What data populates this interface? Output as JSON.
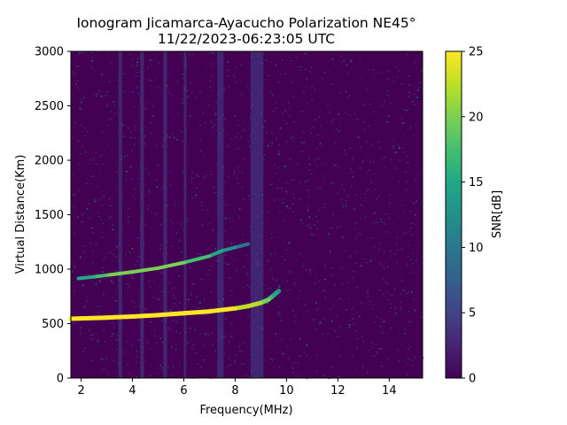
{
  "chart_data": {
    "type": "heatmap",
    "title": "Ionogram Jicamarca-Ayacucho Polarization NE45°",
    "subtitle": "11/22/2023-06:23:05 UTC",
    "xlabel": "Frequency(MHz)",
    "ylabel": "Virtual Distance(Km)",
    "xlim": [
      1.6,
      15.3
    ],
    "ylim": [
      0,
      3000
    ],
    "x_ticks": [
      2,
      4,
      6,
      8,
      10,
      12,
      14
    ],
    "y_ticks": [
      0,
      500,
      1000,
      1500,
      2000,
      2500,
      3000
    ],
    "colorbar": {
      "label": "SNR[dB]",
      "range": [
        0,
        25
      ],
      "ticks": [
        0,
        5,
        10,
        15,
        20,
        25
      ],
      "colormap": "viridis"
    },
    "traces": [
      {
        "x": [
          1.6,
          2.0,
          3.0,
          4.0,
          5.0,
          6.0,
          7.0,
          8.0,
          8.5,
          9.0,
          9.3,
          9.5,
          9.7
        ],
        "y": [
          545,
          548,
          555,
          565,
          578,
          595,
          612,
          640,
          660,
          690,
          720,
          760,
          800
        ],
        "snr": [
          25,
          25,
          25,
          25,
          25,
          25,
          25,
          24,
          23,
          22,
          20,
          16,
          12
        ]
      },
      {
        "x": [
          1.9,
          2.5,
          3.0,
          4.0,
          5.0,
          6.0,
          7.0,
          7.5,
          8.0,
          8.5
        ],
        "y": [
          915,
          930,
          945,
          975,
          1010,
          1060,
          1120,
          1170,
          1200,
          1230
        ],
        "snr": [
          14,
          16,
          18,
          20,
          20,
          19,
          17,
          15,
          12,
          9
        ]
      }
    ],
    "bands": [
      {
        "x": [
          3.45,
          3.6
        ],
        "snr": 4.5
      },
      {
        "x": [
          4.3,
          4.45
        ],
        "snr": 4
      },
      {
        "x": [
          5.2,
          5.35
        ],
        "snr": 4.5
      },
      {
        "x": [
          6.0,
          6.1
        ],
        "snr": 4
      },
      {
        "x": [
          7.3,
          7.55
        ],
        "snr": 5
      },
      {
        "x": [
          8.6,
          9.1
        ],
        "snr": 5
      }
    ]
  }
}
